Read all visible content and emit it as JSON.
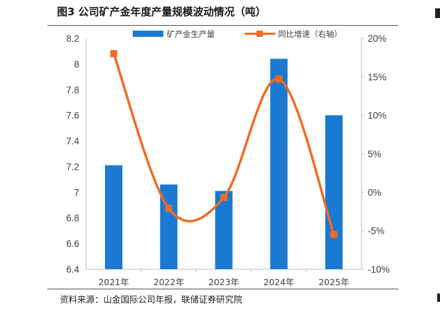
{
  "figure": {
    "title": "图3 公司矿产金年度产量规模波动情况（吨）",
    "source": "资料来源：山金国际公司年报，联储证券研究院"
  },
  "colors": {
    "bar": "#1a7ad2",
    "line": "#f26b21",
    "axis": "#bfbfbf",
    "text": "#404040"
  },
  "chart_data": {
    "type": "bar",
    "categories": [
      "2021年",
      "2022年",
      "2023年",
      "2024年",
      "2025年"
    ],
    "series": [
      {
        "name": "矿产金生产量",
        "type": "bar",
        "axis": "left",
        "values": [
          7.21,
          7.06,
          7.01,
          8.04,
          7.6
        ]
      },
      {
        "name": "同比增速（右轴）",
        "type": "line",
        "axis": "right",
        "smooth": true,
        "values": [
          18.0,
          -2.1,
          -0.7,
          14.7,
          -5.5
        ]
      }
    ],
    "y_left": {
      "min": 6.4,
      "max": 8.2,
      "step": 0.2,
      "tick_labels": [
        "6.4",
        "6.6",
        "6.8",
        "7",
        "7.2",
        "7.4",
        "7.6",
        "7.8",
        "8",
        "8.2"
      ]
    },
    "y_right": {
      "min": -10,
      "max": 20,
      "step": 5,
      "tick_labels": [
        "-10%",
        "-5%",
        "0%",
        "5%",
        "10%",
        "15%",
        "20%"
      ]
    },
    "grid": false,
    "legend": "top-center"
  }
}
